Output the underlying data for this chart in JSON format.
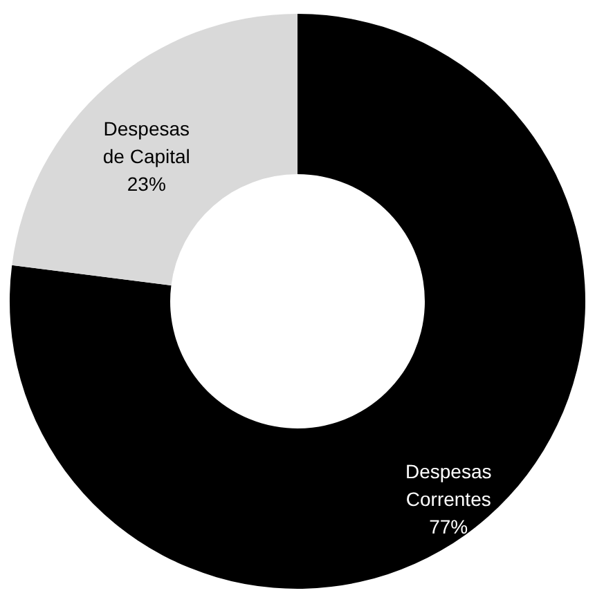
{
  "chart_data": {
    "type": "donut",
    "categories": [
      "Despesas Correntes",
      "Despesas de Capital"
    ],
    "values": [
      77,
      23
    ],
    "value_labels": [
      "77%",
      "23%"
    ],
    "colors": [
      "#000000",
      "#d9d9d9"
    ],
    "legend": false
  }
}
